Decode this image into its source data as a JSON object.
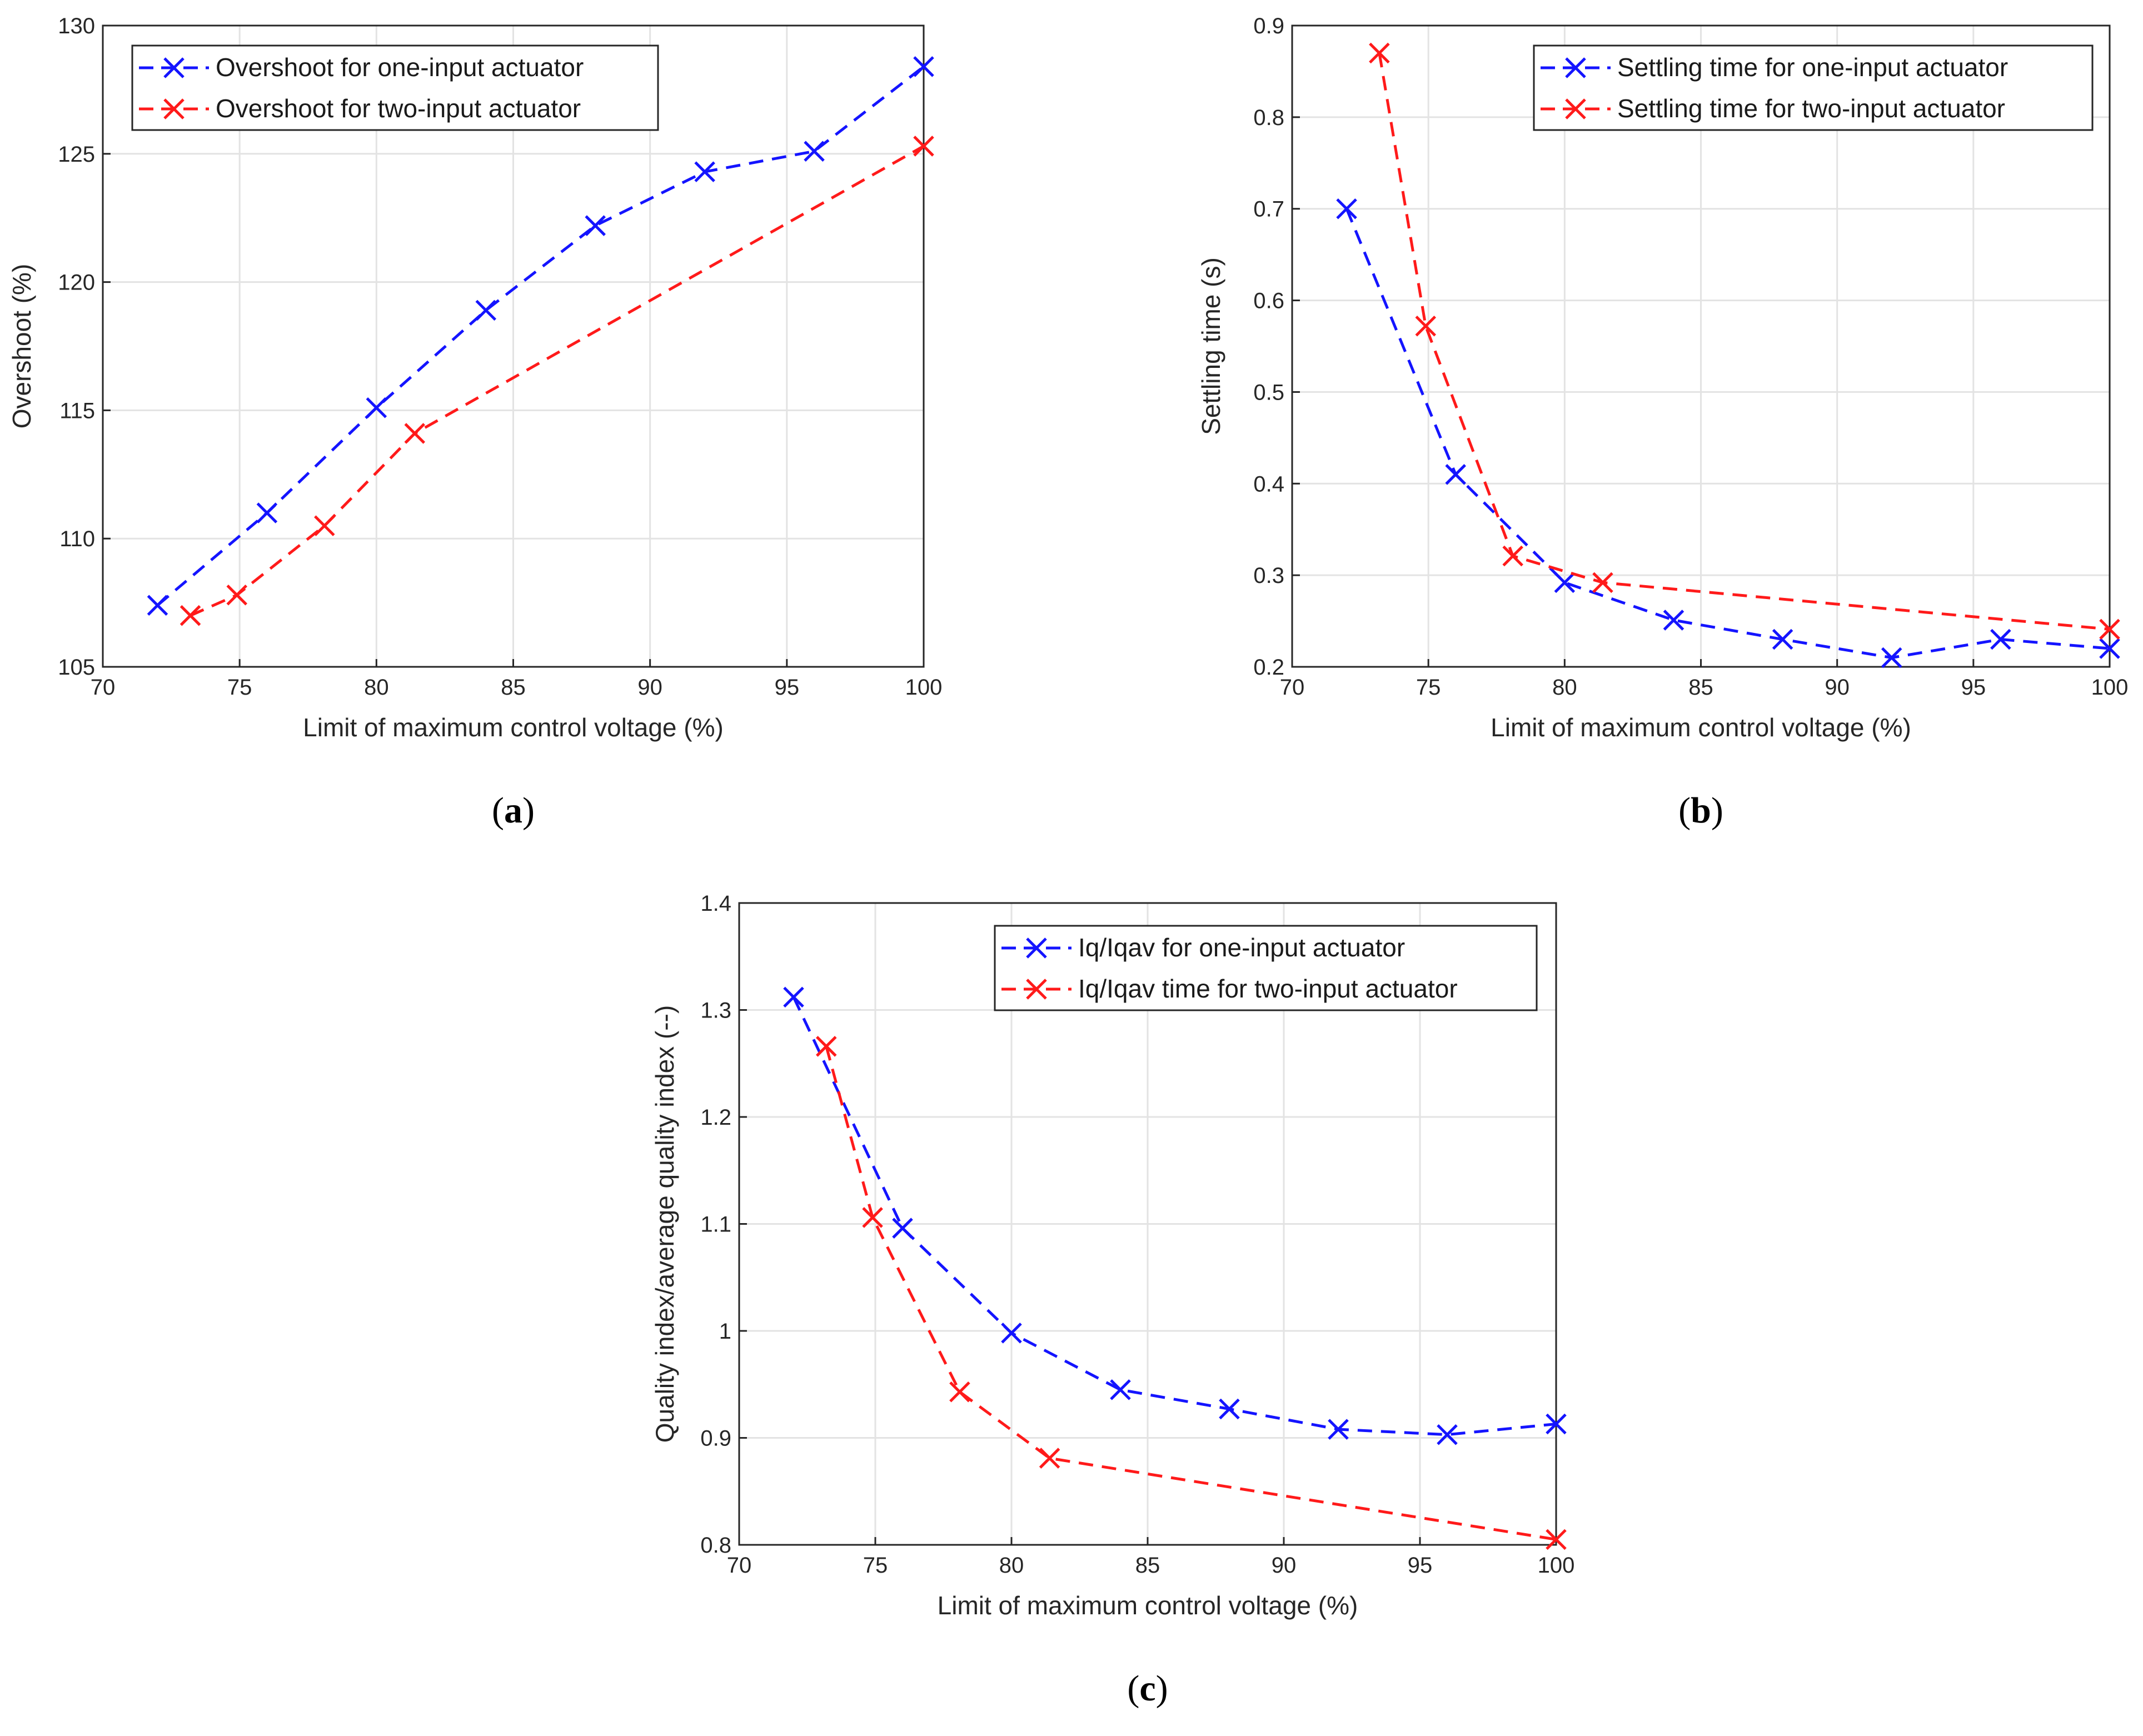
{
  "chart_data": [
    {
      "type": "line",
      "panel_label": "a",
      "title": "",
      "xlabel": "Limit of maximum control voltage (%)",
      "ylabel": "Overshoot (%)",
      "xlim": [
        70,
        100
      ],
      "ylim": [
        105,
        130
      ],
      "xticks": [
        70,
        75,
        80,
        85,
        90,
        95,
        100
      ],
      "yticks": [
        105,
        110,
        115,
        120,
        125,
        130
      ],
      "grid": true,
      "legend_position": "top-left",
      "series": [
        {
          "name": "Overshoot for one-input actuator",
          "color": "#1414ff",
          "x": [
            72,
            76,
            80,
            84,
            88,
            92,
            96,
            100
          ],
          "y": [
            107.4,
            111.0,
            115.1,
            118.9,
            122.2,
            124.3,
            125.1,
            128.4
          ]
        },
        {
          "name": "Overshoot for two-input actuator",
          "color": "#ff1a1a",
          "x": [
            73.2,
            74.9,
            78.1,
            81.4,
            100
          ],
          "y": [
            107.0,
            107.8,
            110.5,
            114.1,
            125.3
          ]
        }
      ]
    },
    {
      "type": "line",
      "panel_label": "b",
      "title": "",
      "xlabel": "Limit of maximum control voltage (%)",
      "ylabel": "Settling time (s)",
      "xlim": [
        70,
        100
      ],
      "ylim": [
        0.2,
        0.9
      ],
      "xticks": [
        70,
        75,
        80,
        85,
        90,
        95,
        100
      ],
      "yticks": [
        0.2,
        0.3,
        0.4,
        0.5,
        0.6,
        0.7,
        0.8,
        0.9
      ],
      "grid": true,
      "legend_position": "top-right",
      "series": [
        {
          "name": "Settling time for one-input actuator",
          "color": "#1414ff",
          "x": [
            72,
            76,
            80,
            84,
            88,
            92,
            96,
            100
          ],
          "y": [
            0.7,
            0.41,
            0.292,
            0.251,
            0.23,
            0.21,
            0.23,
            0.22
          ]
        },
        {
          "name": "Settling time for two-input actuator",
          "color": "#ff1a1a",
          "x": [
            73.2,
            74.9,
            78.1,
            81.4,
            100
          ],
          "y": [
            0.87,
            0.572,
            0.321,
            0.292,
            0.241
          ]
        }
      ]
    },
    {
      "type": "line",
      "panel_label": "c",
      "title": "",
      "xlabel": "Limit of maximum control voltage (%)",
      "ylabel": "Quality index/average quality index (--)",
      "xlim": [
        70,
        100
      ],
      "ylim": [
        0.8,
        1.4
      ],
      "xticks": [
        70,
        75,
        80,
        85,
        90,
        95,
        100
      ],
      "yticks": [
        0.8,
        0.9,
        1.0,
        1.1,
        1.2,
        1.3,
        1.4
      ],
      "grid": true,
      "legend_position": "top-right",
      "series": [
        {
          "name": "Iq/Iqav for one-input actuator",
          "color": "#1414ff",
          "x": [
            72,
            76,
            80,
            84,
            88,
            92,
            96,
            100
          ],
          "y": [
            1.312,
            1.096,
            0.998,
            0.945,
            0.927,
            0.908,
            0.903,
            0.913
          ]
        },
        {
          "name": "Iq/Iqav time for two-input actuator",
          "color": "#ff1a1a",
          "x": [
            73.2,
            74.9,
            78.1,
            81.4,
            100
          ],
          "y": [
            1.266,
            1.106,
            0.943,
            0.881,
            0.805
          ]
        }
      ]
    }
  ]
}
